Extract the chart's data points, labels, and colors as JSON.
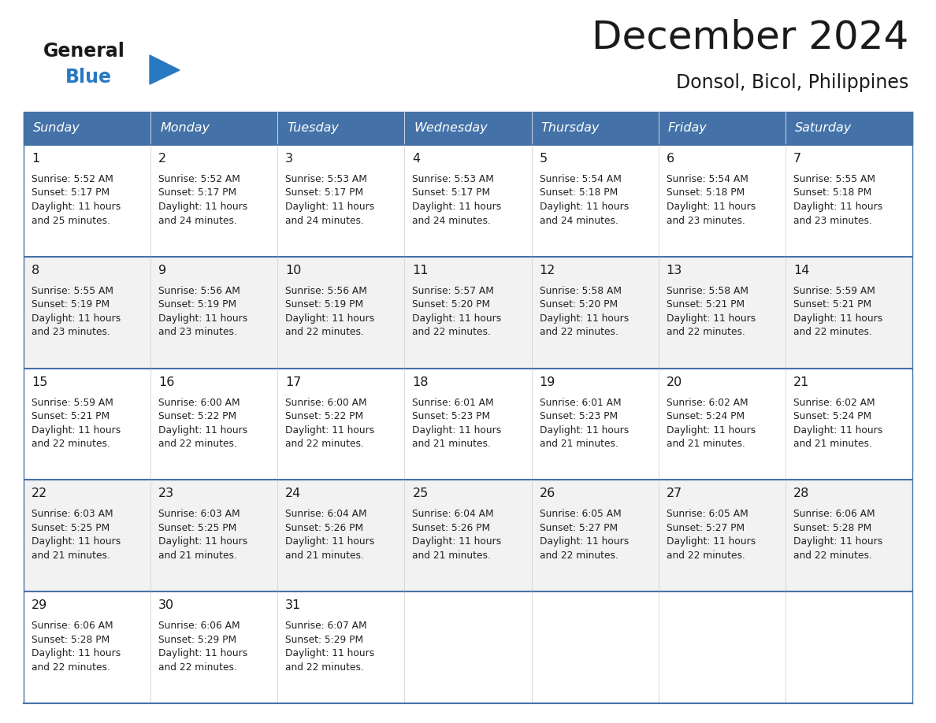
{
  "title": "December 2024",
  "subtitle": "Donsol, Bicol, Philippines",
  "days_of_week": [
    "Sunday",
    "Monday",
    "Tuesday",
    "Wednesday",
    "Thursday",
    "Friday",
    "Saturday"
  ],
  "header_bg_color": "#4472a8",
  "header_text_color": "#FFFFFF",
  "cell_border_color": "#4472a8",
  "cell_bg_even": "#f2f2f2",
  "cell_bg_odd": "#ffffff",
  "title_color": "#1a1a1a",
  "subtitle_color": "#1a1a1a",
  "general_color": "#1a1a1a",
  "blue_color": "#2979C2",
  "calendar_data": [
    {
      "day": 1,
      "col": 0,
      "row": 0,
      "sunrise": "5:52 AM",
      "sunset": "5:17 PM",
      "daylight_h": "11 hours",
      "daylight_m": "and 25 minutes."
    },
    {
      "day": 2,
      "col": 1,
      "row": 0,
      "sunrise": "5:52 AM",
      "sunset": "5:17 PM",
      "daylight_h": "11 hours",
      "daylight_m": "and 24 minutes."
    },
    {
      "day": 3,
      "col": 2,
      "row": 0,
      "sunrise": "5:53 AM",
      "sunset": "5:17 PM",
      "daylight_h": "11 hours",
      "daylight_m": "and 24 minutes."
    },
    {
      "day": 4,
      "col": 3,
      "row": 0,
      "sunrise": "5:53 AM",
      "sunset": "5:17 PM",
      "daylight_h": "11 hours",
      "daylight_m": "and 24 minutes."
    },
    {
      "day": 5,
      "col": 4,
      "row": 0,
      "sunrise": "5:54 AM",
      "sunset": "5:18 PM",
      "daylight_h": "11 hours",
      "daylight_m": "and 24 minutes."
    },
    {
      "day": 6,
      "col": 5,
      "row": 0,
      "sunrise": "5:54 AM",
      "sunset": "5:18 PM",
      "daylight_h": "11 hours",
      "daylight_m": "and 23 minutes."
    },
    {
      "day": 7,
      "col": 6,
      "row": 0,
      "sunrise": "5:55 AM",
      "sunset": "5:18 PM",
      "daylight_h": "11 hours",
      "daylight_m": "and 23 minutes."
    },
    {
      "day": 8,
      "col": 0,
      "row": 1,
      "sunrise": "5:55 AM",
      "sunset": "5:19 PM",
      "daylight_h": "11 hours",
      "daylight_m": "and 23 minutes."
    },
    {
      "day": 9,
      "col": 1,
      "row": 1,
      "sunrise": "5:56 AM",
      "sunset": "5:19 PM",
      "daylight_h": "11 hours",
      "daylight_m": "and 23 minutes."
    },
    {
      "day": 10,
      "col": 2,
      "row": 1,
      "sunrise": "5:56 AM",
      "sunset": "5:19 PM",
      "daylight_h": "11 hours",
      "daylight_m": "and 22 minutes."
    },
    {
      "day": 11,
      "col": 3,
      "row": 1,
      "sunrise": "5:57 AM",
      "sunset": "5:20 PM",
      "daylight_h": "11 hours",
      "daylight_m": "and 22 minutes."
    },
    {
      "day": 12,
      "col": 4,
      "row": 1,
      "sunrise": "5:58 AM",
      "sunset": "5:20 PM",
      "daylight_h": "11 hours",
      "daylight_m": "and 22 minutes."
    },
    {
      "day": 13,
      "col": 5,
      "row": 1,
      "sunrise": "5:58 AM",
      "sunset": "5:21 PM",
      "daylight_h": "11 hours",
      "daylight_m": "and 22 minutes."
    },
    {
      "day": 14,
      "col": 6,
      "row": 1,
      "sunrise": "5:59 AM",
      "sunset": "5:21 PM",
      "daylight_h": "11 hours",
      "daylight_m": "and 22 minutes."
    },
    {
      "day": 15,
      "col": 0,
      "row": 2,
      "sunrise": "5:59 AM",
      "sunset": "5:21 PM",
      "daylight_h": "11 hours",
      "daylight_m": "and 22 minutes."
    },
    {
      "day": 16,
      "col": 1,
      "row": 2,
      "sunrise": "6:00 AM",
      "sunset": "5:22 PM",
      "daylight_h": "11 hours",
      "daylight_m": "and 22 minutes."
    },
    {
      "day": 17,
      "col": 2,
      "row": 2,
      "sunrise": "6:00 AM",
      "sunset": "5:22 PM",
      "daylight_h": "11 hours",
      "daylight_m": "and 22 minutes."
    },
    {
      "day": 18,
      "col": 3,
      "row": 2,
      "sunrise": "6:01 AM",
      "sunset": "5:23 PM",
      "daylight_h": "11 hours",
      "daylight_m": "and 21 minutes."
    },
    {
      "day": 19,
      "col": 4,
      "row": 2,
      "sunrise": "6:01 AM",
      "sunset": "5:23 PM",
      "daylight_h": "11 hours",
      "daylight_m": "and 21 minutes."
    },
    {
      "day": 20,
      "col": 5,
      "row": 2,
      "sunrise": "6:02 AM",
      "sunset": "5:24 PM",
      "daylight_h": "11 hours",
      "daylight_m": "and 21 minutes."
    },
    {
      "day": 21,
      "col": 6,
      "row": 2,
      "sunrise": "6:02 AM",
      "sunset": "5:24 PM",
      "daylight_h": "11 hours",
      "daylight_m": "and 21 minutes."
    },
    {
      "day": 22,
      "col": 0,
      "row": 3,
      "sunrise": "6:03 AM",
      "sunset": "5:25 PM",
      "daylight_h": "11 hours",
      "daylight_m": "and 21 minutes."
    },
    {
      "day": 23,
      "col": 1,
      "row": 3,
      "sunrise": "6:03 AM",
      "sunset": "5:25 PM",
      "daylight_h": "11 hours",
      "daylight_m": "and 21 minutes."
    },
    {
      "day": 24,
      "col": 2,
      "row": 3,
      "sunrise": "6:04 AM",
      "sunset": "5:26 PM",
      "daylight_h": "11 hours",
      "daylight_m": "and 21 minutes."
    },
    {
      "day": 25,
      "col": 3,
      "row": 3,
      "sunrise": "6:04 AM",
      "sunset": "5:26 PM",
      "daylight_h": "11 hours",
      "daylight_m": "and 21 minutes."
    },
    {
      "day": 26,
      "col": 4,
      "row": 3,
      "sunrise": "6:05 AM",
      "sunset": "5:27 PM",
      "daylight_h": "11 hours",
      "daylight_m": "and 22 minutes."
    },
    {
      "day": 27,
      "col": 5,
      "row": 3,
      "sunrise": "6:05 AM",
      "sunset": "5:27 PM",
      "daylight_h": "11 hours",
      "daylight_m": "and 22 minutes."
    },
    {
      "day": 28,
      "col": 6,
      "row": 3,
      "sunrise": "6:06 AM",
      "sunset": "5:28 PM",
      "daylight_h": "11 hours",
      "daylight_m": "and 22 minutes."
    },
    {
      "day": 29,
      "col": 0,
      "row": 4,
      "sunrise": "6:06 AM",
      "sunset": "5:28 PM",
      "daylight_h": "11 hours",
      "daylight_m": "and 22 minutes."
    },
    {
      "day": 30,
      "col": 1,
      "row": 4,
      "sunrise": "6:06 AM",
      "sunset": "5:29 PM",
      "daylight_h": "11 hours",
      "daylight_m": "and 22 minutes."
    },
    {
      "day": 31,
      "col": 2,
      "row": 4,
      "sunrise": "6:07 AM",
      "sunset": "5:29 PM",
      "daylight_h": "11 hours",
      "daylight_m": "and 22 minutes."
    }
  ],
  "fig_width": 11.88,
  "fig_height": 9.18,
  "dpi": 100
}
